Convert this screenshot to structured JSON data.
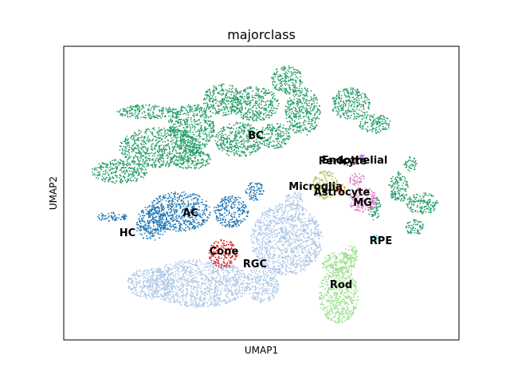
{
  "chart_data": {
    "type": "scatter",
    "title": "majorclass",
    "xlabel": "UMAP1",
    "ylabel": "UMAP2",
    "xticks": [],
    "yticks": [],
    "grid": false,
    "legend": "on data",
    "series": [
      {
        "name": "BC",
        "color": "#279e68"
      },
      {
        "name": "AC",
        "color": "#1f77b4"
      },
      {
        "name": "HC",
        "color": "#1f77b4"
      },
      {
        "name": "RGC",
        "color": "#aec7e8"
      },
      {
        "name": "Cone",
        "color": "#d62728"
      },
      {
        "name": "Rod",
        "color": "#98df8a"
      },
      {
        "name": "MG",
        "color": "#e377c2"
      },
      {
        "name": "Astrocyte",
        "color": "#ff7f0e"
      },
      {
        "name": "Microglia",
        "color": "#b5bd61"
      },
      {
        "name": "Endothelial",
        "color": "#8c564b"
      },
      {
        "name": "Pericyte",
        "color": "#aa40fc"
      },
      {
        "name": "RPE",
        "color": "#17becf"
      }
    ]
  }
}
